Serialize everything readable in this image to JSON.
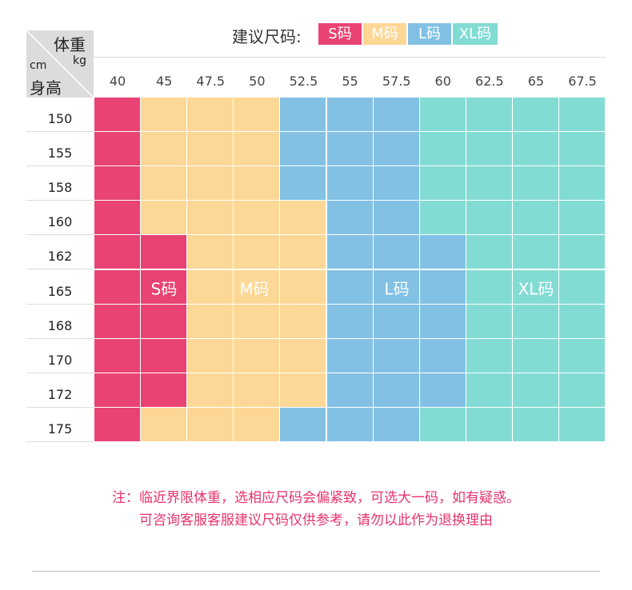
{
  "legend": {
    "title": "建议尺码:",
    "items": [
      {
        "label": "S码",
        "color": "#e84373"
      },
      {
        "label": "M码",
        "color": "#fdd795"
      },
      {
        "label": "L码",
        "color": "#82c1e4"
      },
      {
        "label": "XL码",
        "color": "#83dcd4"
      }
    ]
  },
  "corner": {
    "weight": "体重",
    "weight_unit": "kg",
    "height_unit": "cm",
    "height": "身高"
  },
  "weights": [
    "40",
    "45",
    "47.5",
    "50",
    "52.5",
    "55",
    "57.5",
    "60",
    "62.5",
    "65",
    "67.5"
  ],
  "heights": [
    "150",
    "155",
    "158",
    "160",
    "162",
    "165",
    "168",
    "170",
    "172",
    "175"
  ],
  "size_map": [
    "SMMMLLLXXXX",
    "SMMMLLLXXXX",
    "SMMMLLLXXXX",
    "SMMMMLLXXXX",
    "SSMMMLLLXXX",
    "SSMMMLLLXXX",
    "SSMMMLLLXXX",
    "SSMMMLLLXXX",
    "SSMMMLLLXXX",
    "SMMMLLLXXXX"
  ],
  "size_labels": {
    "S": "S码",
    "M": "M码",
    "L": "L码",
    "XL": "XL码"
  },
  "notes": [
    "注：临近界限体重，选相应尺码会偏紧致，可选大一码，如有疑惑。",
    "可咨询客服客服建议尺码仅供参考，请勿以此作为退换理由"
  ]
}
